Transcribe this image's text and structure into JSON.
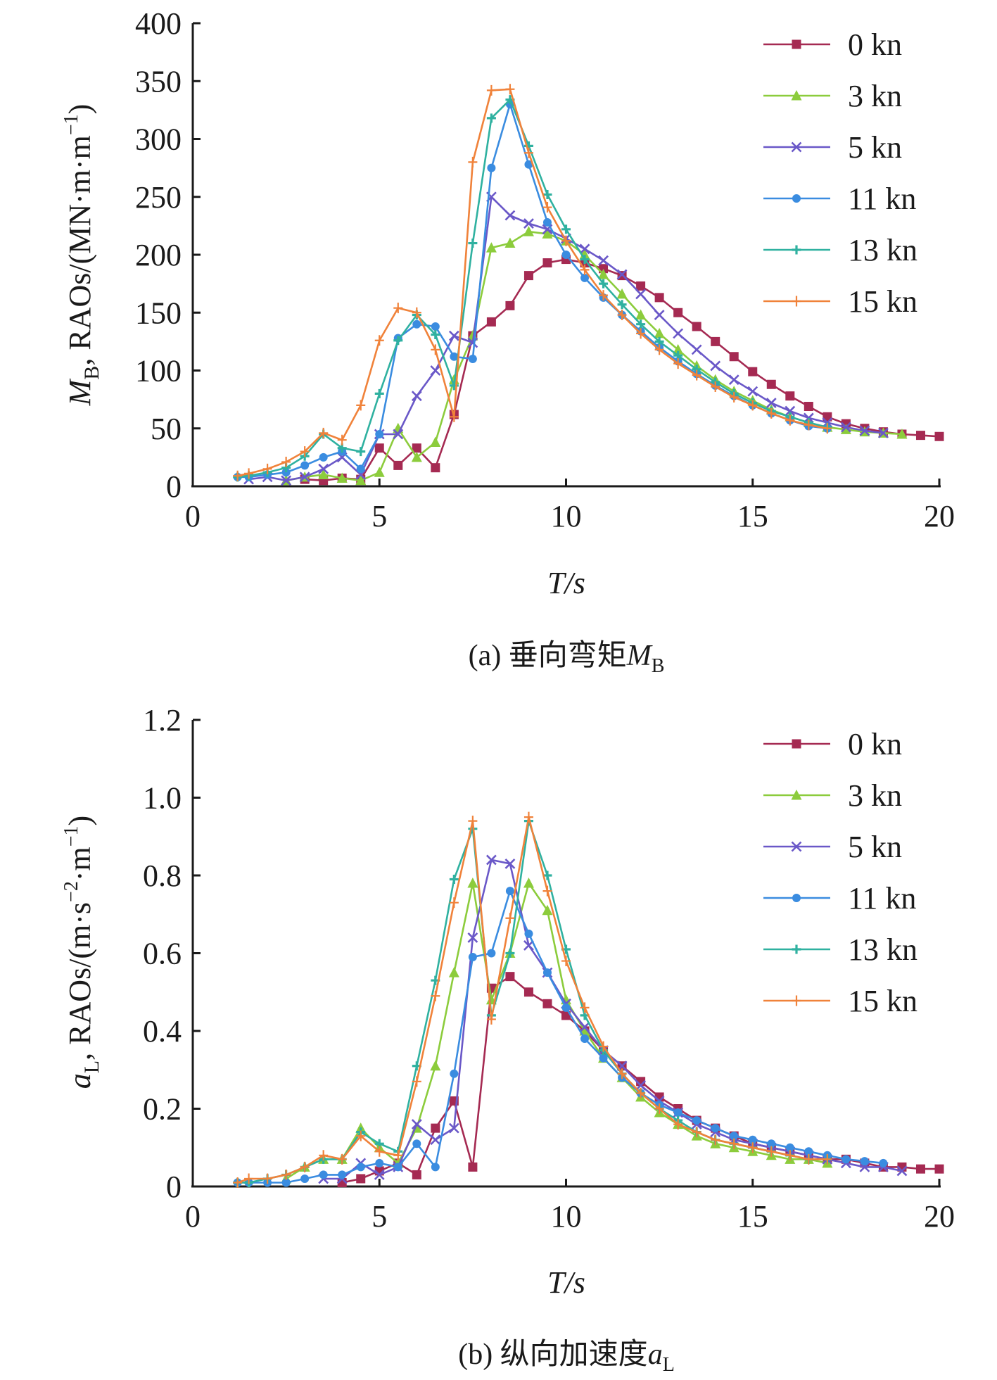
{
  "chart_data": [
    {
      "id": "a",
      "type": "line",
      "caption": {
        "prefix": "(a) 垂向弯矩",
        "var": "M",
        "sub": "B"
      },
      "xlabel": "T/s",
      "ylabel": {
        "var": "M",
        "sub": "B",
        "suffix": ", RAOs/(MN·m·m",
        "sup": "−1",
        "end": ")"
      },
      "xlim": [
        0,
        20
      ],
      "ylim": [
        0,
        400
      ],
      "xticks": [
        "0",
        "5",
        "10",
        "15",
        "20"
      ],
      "yticks": [
        "0",
        "50",
        "100",
        "150",
        "200",
        "250",
        "300",
        "350",
        "400"
      ],
      "legend": [
        "0 kn",
        "3 kn",
        "5 kn",
        "11 kn",
        "13 kn",
        "15 kn"
      ],
      "series": [
        {
          "name": "0 kn",
          "color": "#a52a52",
          "marker": "square",
          "x": [
            3,
            3.5,
            4,
            4.5,
            5,
            5.5,
            6,
            6.5,
            7,
            7.5,
            8,
            8.5,
            9,
            9.5,
            10,
            10.5,
            11,
            11.5,
            12,
            12.5,
            13,
            13.5,
            14,
            14.5,
            15,
            15.5,
            16,
            16.5,
            17,
            17.5,
            18,
            18.5,
            19,
            19.5,
            20
          ],
          "y": [
            6,
            5,
            7,
            6,
            33,
            18,
            33,
            16,
            62,
            130,
            142,
            156,
            182,
            193,
            196,
            193,
            188,
            182,
            173,
            163,
            150,
            138,
            125,
            112,
            99,
            88,
            78,
            69,
            60,
            54,
            50,
            47,
            45,
            44,
            43
          ]
        },
        {
          "name": "3 kn",
          "color": "#8ccc3c",
          "marker": "triangle",
          "x": [
            2.5,
            3,
            3.5,
            4,
            4.5,
            5,
            5.5,
            6,
            6.5,
            7,
            7.5,
            8,
            8.5,
            9,
            9.5,
            10,
            10.5,
            11,
            11.5,
            12,
            12.5,
            13,
            13.5,
            14,
            14.5,
            15,
            15.5,
            16,
            16.5,
            17,
            17.5,
            18,
            18.5,
            19
          ],
          "y": [
            5,
            8,
            10,
            7,
            5,
            12,
            50,
            25,
            38,
            92,
            130,
            206,
            210,
            220,
            218,
            212,
            200,
            183,
            166,
            148,
            132,
            118,
            104,
            92,
            82,
            74,
            66,
            60,
            55,
            51,
            49,
            47,
            46,
            45
          ]
        },
        {
          "name": "5 kn",
          "color": "#6a58c8",
          "marker": "x",
          "x": [
            1.5,
            2,
            2.5,
            3,
            3.5,
            4,
            4.5,
            5,
            5.5,
            6,
            6.5,
            7,
            7.5,
            8,
            8.5,
            9,
            9.5,
            10,
            10.5,
            11,
            11.5,
            12,
            12.5,
            13,
            13.5,
            14,
            14.5,
            15,
            15.5,
            16,
            16.5,
            17,
            17.5,
            18,
            18.5
          ],
          "y": [
            6,
            8,
            5,
            8,
            15,
            25,
            10,
            45,
            45,
            78,
            100,
            130,
            124,
            250,
            234,
            227,
            222,
            214,
            205,
            195,
            183,
            166,
            148,
            132,
            118,
            104,
            92,
            82,
            72,
            65,
            59,
            55,
            51,
            48,
            46
          ]
        },
        {
          "name": "11 kn",
          "color": "#3a8ce0",
          "marker": "dot",
          "x": [
            1.2,
            1.5,
            2,
            2.5,
            3,
            3.5,
            4,
            4.5,
            5,
            5.5,
            6,
            6.5,
            7,
            7.5,
            8,
            8.5,
            9,
            9.5,
            10,
            10.5,
            11,
            11.5,
            12,
            12.5,
            13,
            13.5,
            14,
            14.5,
            15,
            15.5,
            16,
            16.5,
            17
          ],
          "y": [
            8,
            8,
            10,
            12,
            18,
            25,
            30,
            15,
            45,
            128,
            140,
            138,
            112,
            110,
            275,
            330,
            278,
            228,
            200,
            180,
            163,
            148,
            134,
            120,
            108,
            97,
            87,
            78,
            70,
            63,
            57,
            52,
            50
          ]
        },
        {
          "name": "13 kn",
          "color": "#2fb1a0",
          "marker": "plus",
          "x": [
            1.2,
            1.5,
            2,
            2.5,
            3,
            3.5,
            4,
            4.5,
            5,
            5.5,
            6,
            6.5,
            7,
            7.5,
            8,
            8.5,
            9,
            9.5,
            10,
            10.5,
            11,
            11.5,
            12,
            12.5,
            13,
            13.5,
            14,
            14.5,
            15,
            15.5,
            16,
            16.5,
            17
          ],
          "y": [
            8,
            9,
            12,
            16,
            26,
            45,
            33,
            30,
            80,
            126,
            148,
            131,
            87,
            210,
            318,
            334,
            294,
            252,
            222,
            196,
            175,
            157,
            140,
            125,
            113,
            101,
            90,
            80,
            72,
            65,
            60,
            55,
            51
          ]
        },
        {
          "name": "15 kn",
          "color": "#f0823a",
          "marker": "cross",
          "x": [
            1.2,
            1.5,
            2,
            2.5,
            3,
            3.5,
            4,
            4.5,
            5,
            5.5,
            6,
            6.5,
            7,
            7.5,
            8,
            8.5,
            9,
            9.5,
            10,
            10.5,
            11,
            11.5,
            12,
            12.5,
            13,
            13.5,
            14,
            14.5,
            15,
            15.5,
            16,
            16.5,
            17
          ],
          "y": [
            9,
            11,
            15,
            21,
            30,
            46,
            40,
            70,
            126,
            154,
            150,
            118,
            60,
            280,
            342,
            343,
            288,
            241,
            212,
            187,
            165,
            148,
            132,
            118,
            106,
            96,
            86,
            77,
            70,
            63,
            57,
            53,
            50
          ]
        }
      ]
    },
    {
      "id": "b",
      "type": "line",
      "caption": {
        "prefix": "(b) 纵向加速度",
        "var": "a",
        "sub": "L"
      },
      "xlabel": "T/s",
      "ylabel": {
        "var": "a",
        "sub": "L",
        "suffix": ", RAOs/(m·s",
        "sup": "−2",
        "mid": "·m",
        "sup2": "−1",
        "end": ")"
      },
      "xlim": [
        0,
        20
      ],
      "ylim": [
        0,
        1.2
      ],
      "xticks": [
        "0",
        "5",
        "10",
        "15",
        "20"
      ],
      "yticks": [
        "0",
        "0.2",
        "0.4",
        "0.6",
        "0.8",
        "1.0",
        "1.2"
      ],
      "legend": [
        "0 kn",
        "3 kn",
        "5 kn",
        "11 kn",
        "13 kn",
        "15 kn"
      ],
      "series": [
        {
          "name": "0 kn",
          "color": "#a52a52",
          "marker": "square",
          "x": [
            4,
            4.5,
            5,
            5.5,
            6,
            6.5,
            7,
            7.5,
            8,
            8.5,
            9,
            9.5,
            10,
            10.5,
            11,
            11.5,
            12,
            12.5,
            13,
            13.5,
            14,
            14.5,
            15,
            15.5,
            16,
            16.5,
            17,
            17.5,
            18,
            18.5,
            19,
            19.5,
            20
          ],
          "y": [
            0.01,
            0.02,
            0.04,
            0.06,
            0.03,
            0.15,
            0.22,
            0.05,
            0.51,
            0.54,
            0.5,
            0.47,
            0.44,
            0.4,
            0.35,
            0.31,
            0.27,
            0.23,
            0.2,
            0.17,
            0.15,
            0.13,
            0.11,
            0.1,
            0.09,
            0.08,
            0.07,
            0.07,
            0.06,
            0.05,
            0.05,
            0.045,
            0.045
          ]
        },
        {
          "name": "3 kn",
          "color": "#8ccc3c",
          "marker": "triangle",
          "x": [
            2.5,
            3,
            3.5,
            4,
            4.5,
            5,
            5.5,
            6,
            6.5,
            7,
            7.5,
            8,
            8.5,
            9,
            9.5,
            10,
            10.5,
            11,
            11.5,
            12,
            12.5,
            13,
            13.5,
            14,
            14.5,
            15,
            15.5,
            16,
            16.5,
            17
          ],
          "y": [
            0.02,
            0.05,
            0.07,
            0.07,
            0.15,
            0.1,
            0.06,
            0.15,
            0.31,
            0.55,
            0.78,
            0.48,
            0.6,
            0.78,
            0.71,
            0.48,
            0.4,
            0.33,
            0.28,
            0.23,
            0.19,
            0.16,
            0.13,
            0.11,
            0.1,
            0.09,
            0.08,
            0.07,
            0.07,
            0.06
          ]
        },
        {
          "name": "5 kn",
          "color": "#6a58c8",
          "marker": "x",
          "x": [
            3.5,
            4,
            4.5,
            5,
            5.5,
            6,
            6.5,
            7,
            7.5,
            8,
            8.5,
            9,
            9.5,
            10,
            10.5,
            11,
            11.5,
            12,
            12.5,
            13,
            13.5,
            14,
            14.5,
            15,
            15.5,
            16,
            16.5,
            17,
            17.5,
            18,
            18.5,
            19
          ],
          "y": [
            0.02,
            0.02,
            0.06,
            0.03,
            0.05,
            0.16,
            0.12,
            0.15,
            0.64,
            0.84,
            0.83,
            0.62,
            0.55,
            0.47,
            0.41,
            0.35,
            0.31,
            0.26,
            0.22,
            0.19,
            0.16,
            0.14,
            0.12,
            0.11,
            0.1,
            0.09,
            0.08,
            0.07,
            0.06,
            0.05,
            0.05,
            0.04
          ]
        },
        {
          "name": "11 kn",
          "color": "#3a8ce0",
          "marker": "dot",
          "x": [
            1.2,
            1.5,
            2,
            2.5,
            3,
            3.5,
            4,
            4.5,
            5,
            5.5,
            6,
            6.5,
            7,
            7.5,
            8,
            8.5,
            9,
            9.5,
            10,
            10.5,
            11,
            11.5,
            12,
            12.5,
            13,
            13.5,
            14,
            14.5,
            15,
            15.5,
            16,
            16.5,
            17,
            17.5,
            18,
            18.5
          ],
          "y": [
            0.01,
            0.01,
            0.01,
            0.01,
            0.02,
            0.03,
            0.03,
            0.05,
            0.06,
            0.05,
            0.11,
            0.05,
            0.29,
            0.59,
            0.6,
            0.76,
            0.65,
            0.55,
            0.46,
            0.38,
            0.33,
            0.28,
            0.24,
            0.21,
            0.19,
            0.17,
            0.15,
            0.13,
            0.12,
            0.11,
            0.1,
            0.09,
            0.08,
            0.07,
            0.065,
            0.06
          ]
        },
        {
          "name": "13 kn",
          "color": "#2fb1a0",
          "marker": "plus",
          "x": [
            1.2,
            1.5,
            2,
            2.5,
            3,
            3.5,
            4,
            4.5,
            5,
            5.5,
            6,
            6.5,
            7,
            7.5,
            8,
            8.5,
            9,
            9.5,
            10,
            10.5,
            11,
            11.5,
            12,
            12.5,
            13,
            13.5,
            14,
            14.5,
            15,
            15.5,
            16,
            16.5,
            17
          ],
          "y": [
            0.01,
            0.01,
            0.02,
            0.03,
            0.05,
            0.07,
            0.07,
            0.14,
            0.11,
            0.09,
            0.31,
            0.53,
            0.79,
            0.92,
            0.44,
            0.6,
            0.94,
            0.8,
            0.61,
            0.44,
            0.35,
            0.29,
            0.24,
            0.2,
            0.17,
            0.14,
            0.12,
            0.11,
            0.1,
            0.09,
            0.08,
            0.07,
            0.07
          ]
        },
        {
          "name": "15 kn",
          "color": "#f0823a",
          "marker": "cross",
          "x": [
            1.2,
            1.5,
            2,
            2.5,
            3,
            3.5,
            4,
            4.5,
            5,
            5.5,
            6,
            6.5,
            7,
            7.5,
            8,
            8.5,
            9,
            9.5,
            10,
            10.5,
            11,
            11.5,
            12,
            12.5,
            13,
            13.5,
            14,
            14.5,
            15,
            15.5,
            16,
            16.5,
            17
          ],
          "y": [
            0.01,
            0.02,
            0.02,
            0.03,
            0.05,
            0.08,
            0.07,
            0.13,
            0.09,
            0.08,
            0.27,
            0.49,
            0.73,
            0.94,
            0.43,
            0.69,
            0.95,
            0.76,
            0.58,
            0.46,
            0.36,
            0.29,
            0.24,
            0.2,
            0.16,
            0.14,
            0.12,
            0.11,
            0.1,
            0.09,
            0.08,
            0.07,
            0.07
          ]
        }
      ]
    }
  ]
}
